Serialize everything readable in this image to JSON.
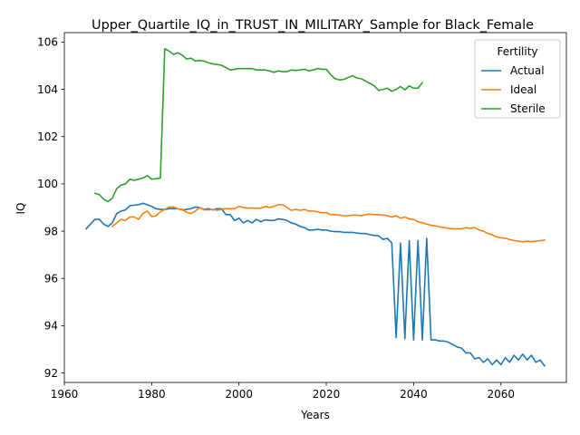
{
  "chart_data": {
    "type": "line",
    "title": "Upper_Quartile_IQ_in_TRUST_IN_MILITARY_Sample for Black_Female",
    "xlabel": "Years",
    "ylabel": "IQ",
    "xlim": [
      1960,
      2075
    ],
    "ylim": [
      91.6,
      106.4
    ],
    "xticks": [
      1960,
      1980,
      2000,
      2020,
      2040,
      2060
    ],
    "yticks": [
      92,
      94,
      96,
      98,
      100,
      102,
      104,
      106
    ],
    "grid": false,
    "legend": {
      "title": "Fertility",
      "placement": "top-right"
    },
    "series": [
      {
        "name": "Actual",
        "color": "#1f77b4",
        "x": [
          1965,
          1966,
          1967,
          1968,
          1969,
          1970,
          1971,
          1972,
          1973,
          1974,
          1975,
          1976,
          1977,
          1978,
          1979,
          1980,
          1981,
          1982,
          1983,
          1984,
          1985,
          1986,
          1987,
          1988,
          1989,
          1990,
          1991,
          1992,
          1993,
          1994,
          1995,
          1996,
          1997,
          1998,
          1999,
          2000,
          2001,
          2002,
          2003,
          2004,
          2005,
          2006,
          2007,
          2008,
          2009,
          2010,
          2011,
          2012,
          2013,
          2014,
          2015,
          2016,
          2017,
          2018,
          2019,
          2020,
          2021,
          2022,
          2023,
          2024,
          2025,
          2026,
          2027,
          2028,
          2029,
          2030,
          2031,
          2032,
          2033,
          2034,
          2035,
          2036,
          2037,
          2038,
          2039,
          2040,
          2041,
          2042,
          2043,
          2044,
          2045,
          2046,
          2047,
          2048,
          2049,
          2050,
          2051,
          2052,
          2053,
          2054,
          2055,
          2056,
          2057,
          2058,
          2059,
          2060,
          2061,
          2062,
          2063,
          2064,
          2065,
          2066,
          2067,
          2068,
          2069,
          2070
        ],
        "y": [
          98.1,
          98.3,
          98.5,
          98.5,
          98.3,
          98.2,
          98.35,
          98.75,
          98.85,
          98.9,
          99.08,
          99.1,
          99.12,
          99.18,
          99.12,
          99.05,
          98.95,
          98.92,
          98.92,
          98.95,
          98.95,
          98.95,
          98.9,
          98.92,
          98.95,
          99.02,
          99.0,
          98.92,
          98.95,
          98.9,
          98.95,
          98.95,
          98.7,
          98.7,
          98.45,
          98.55,
          98.35,
          98.45,
          98.35,
          98.5,
          98.4,
          98.48,
          98.45,
          98.45,
          98.52,
          98.5,
          98.45,
          98.35,
          98.3,
          98.2,
          98.15,
          98.05,
          98.05,
          98.08,
          98.05,
          98.05,
          98.0,
          97.98,
          97.98,
          97.95,
          97.95,
          97.95,
          97.92,
          97.9,
          97.9,
          97.85,
          97.82,
          97.8,
          97.65,
          97.7,
          97.5,
          93.5,
          97.5,
          93.45,
          97.6,
          93.4,
          97.6,
          93.4,
          97.7,
          93.4,
          93.4,
          93.35,
          93.35,
          93.3,
          93.2,
          93.1,
          93.05,
          92.85,
          92.85,
          92.6,
          92.65,
          92.45,
          92.6,
          92.35,
          92.55,
          92.35,
          92.65,
          92.45,
          92.75,
          92.55,
          92.8,
          92.55,
          92.75,
          92.45,
          92.55,
          92.3
        ]
      },
      {
        "name": "Ideal",
        "color": "#ff7f0e",
        "x": [
          1971,
          1972,
          1973,
          1974,
          1975,
          1976,
          1977,
          1978,
          1979,
          1980,
          1981,
          1982,
          1983,
          1984,
          1985,
          1986,
          1987,
          1988,
          1989,
          1990,
          1991,
          1992,
          1993,
          1994,
          1995,
          1996,
          1997,
          1998,
          1999,
          2000,
          2001,
          2002,
          2003,
          2004,
          2005,
          2006,
          2007,
          2008,
          2009,
          2010,
          2011,
          2012,
          2013,
          2014,
          2015,
          2016,
          2017,
          2018,
          2019,
          2020,
          2021,
          2022,
          2023,
          2024,
          2025,
          2026,
          2027,
          2028,
          2029,
          2030,
          2031,
          2032,
          2033,
          2034,
          2035,
          2036,
          2037,
          2038,
          2039,
          2040,
          2041,
          2042,
          2043,
          2044,
          2045,
          2046,
          2047,
          2048,
          2049,
          2050,
          2051,
          2052,
          2053,
          2054,
          2055,
          2056,
          2057,
          2058,
          2059,
          2060,
          2061,
          2062,
          2063,
          2064,
          2065,
          2066,
          2067,
          2068,
          2069,
          2070
        ],
        "y": [
          98.2,
          98.35,
          98.5,
          98.45,
          98.6,
          98.6,
          98.5,
          98.75,
          98.85,
          98.62,
          98.65,
          98.82,
          98.92,
          99.02,
          99.02,
          98.95,
          98.92,
          98.8,
          98.75,
          98.85,
          99.0,
          98.9,
          98.9,
          98.92,
          98.88,
          98.92,
          98.95,
          98.95,
          98.95,
          99.05,
          99.0,
          98.98,
          98.98,
          98.97,
          98.97,
          99.05,
          99.0,
          99.05,
          99.12,
          99.12,
          99.0,
          98.88,
          98.92,
          98.88,
          98.92,
          98.85,
          98.85,
          98.82,
          98.78,
          98.78,
          98.7,
          98.7,
          98.68,
          98.65,
          98.65,
          98.68,
          98.68,
          98.65,
          98.7,
          98.72,
          98.7,
          98.7,
          98.68,
          98.65,
          98.6,
          98.65,
          98.55,
          98.6,
          98.52,
          98.5,
          98.4,
          98.35,
          98.3,
          98.25,
          98.22,
          98.18,
          98.15,
          98.12,
          98.1,
          98.1,
          98.1,
          98.15,
          98.12,
          98.15,
          98.05,
          98.0,
          97.9,
          97.85,
          97.75,
          97.72,
          97.7,
          97.65,
          97.6,
          97.58,
          97.55,
          97.58,
          97.55,
          97.58,
          97.6,
          97.62
        ]
      },
      {
        "name": "Sterile",
        "color": "#2ca02c",
        "x": [
          1967,
          1968,
          1969,
          1970,
          1971,
          1972,
          1973,
          1974,
          1975,
          1976,
          1977,
          1978,
          1979,
          1980,
          1981,
          1982,
          1983,
          1984,
          1985,
          1986,
          1987,
          1988,
          1989,
          1990,
          1991,
          1992,
          1993,
          1994,
          1995,
          1996,
          1997,
          1998,
          1999,
          2000,
          2001,
          2002,
          2003,
          2004,
          2005,
          2006,
          2007,
          2008,
          2009,
          2010,
          2011,
          2012,
          2013,
          2014,
          2015,
          2016,
          2017,
          2018,
          2019,
          2020,
          2021,
          2022,
          2023,
          2024,
          2025,
          2026,
          2027,
          2028,
          2029,
          2030,
          2031,
          2032,
          2033,
          2034,
          2035,
          2036,
          2037,
          2038,
          2039,
          2040,
          2041,
          2042
        ],
        "y": [
          99.6,
          99.55,
          99.35,
          99.25,
          99.4,
          99.8,
          99.95,
          100.0,
          100.2,
          100.15,
          100.2,
          100.25,
          100.35,
          100.2,
          100.22,
          100.25,
          105.72,
          105.62,
          105.48,
          105.55,
          105.45,
          105.28,
          105.32,
          105.2,
          105.22,
          105.2,
          105.12,
          105.08,
          105.05,
          105.02,
          104.92,
          104.82,
          104.85,
          104.88,
          104.88,
          104.88,
          104.88,
          104.82,
          104.82,
          104.82,
          104.78,
          104.72,
          104.78,
          104.75,
          104.75,
          104.82,
          104.8,
          104.82,
          104.85,
          104.78,
          104.82,
          104.88,
          104.85,
          104.85,
          104.62,
          104.45,
          104.4,
          104.42,
          104.5,
          104.58,
          104.48,
          104.45,
          104.35,
          104.25,
          104.15,
          103.95,
          104.0,
          104.05,
          103.92,
          104.0,
          104.12,
          103.98,
          104.15,
          104.05,
          104.05,
          104.28
        ]
      }
    ]
  }
}
